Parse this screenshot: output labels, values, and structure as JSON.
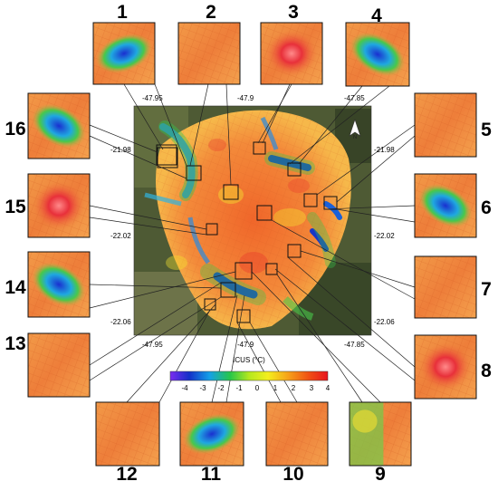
{
  "insets": [
    {
      "label": "1",
      "pattern": "cool"
    },
    {
      "label": "2",
      "pattern": "warm"
    },
    {
      "label": "3",
      "pattern": "hot"
    },
    {
      "label": "4",
      "pattern": "cool"
    },
    {
      "label": "5",
      "pattern": "warm"
    },
    {
      "label": "6",
      "pattern": "cool"
    },
    {
      "label": "7",
      "pattern": "warm"
    },
    {
      "label": "8",
      "pattern": "hot"
    },
    {
      "label": "9",
      "pattern": "mixed"
    },
    {
      "label": "10",
      "pattern": "warm"
    },
    {
      "label": "11",
      "pattern": "cool"
    },
    {
      "label": "12",
      "pattern": "warm"
    },
    {
      "label": "13",
      "pattern": "warm"
    },
    {
      "label": "14",
      "pattern": "cool"
    },
    {
      "label": "15",
      "pattern": "hot"
    },
    {
      "label": "16",
      "pattern": "cool"
    }
  ],
  "coordinates": {
    "top_lon": [
      "-47.95",
      "-47.9",
      "-47.85"
    ],
    "bottom_lon": [
      "-47.95",
      "-47.9",
      "-47.85"
    ],
    "left_lat": [
      "-21.98",
      "-22.02",
      "-22.06"
    ],
    "right_lat": [
      "-21.98",
      "-22.02",
      "-22.06"
    ]
  },
  "north_arrow": {
    "label": "N"
  },
  "colorbar": {
    "title": "ICUS (°C)",
    "ticks": [
      "-4",
      "-3",
      "-2",
      "-1",
      "0",
      "1",
      "2",
      "3",
      "4"
    ],
    "colors": [
      "#7b2cf0",
      "#1430c8",
      "#14a0e8",
      "#26c64a",
      "#b4e81e",
      "#f4ee1e",
      "#f6a018",
      "#f05014",
      "#e8141e"
    ]
  }
}
